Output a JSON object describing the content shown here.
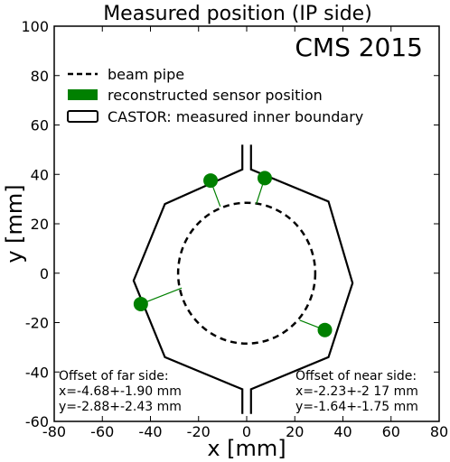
{
  "chart_data": {
    "type": "scatter",
    "title": "Measured position (IP side)",
    "xlabel": "x [mm]",
    "ylabel": "y [mm]",
    "xlim": [
      -80,
      80
    ],
    "ylim": [
      -60,
      100
    ],
    "xticks": [
      "-80",
      "-60",
      "-40",
      "-20",
      "0",
      "20",
      "40",
      "60",
      "80"
    ],
    "yticks": [
      "-60",
      "-40",
      "-20",
      "0",
      "20",
      "40",
      "60",
      "80",
      "100"
    ],
    "grid": false,
    "legend_position": "top-left",
    "corner_label": "CMS 2015",
    "beam_pipe": {
      "name": "beam pipe",
      "center": [
        0,
        0
      ],
      "radius": 28.5,
      "style": "dashed",
      "color": "#000000"
    },
    "castor_boundary": {
      "name": "CASTOR: measured inner boundary",
      "color": "#000000",
      "far_side": [
        [
          -1.8,
          52
        ],
        [
          -1.8,
          42
        ],
        [
          -34,
          28
        ],
        [
          -47,
          -3
        ],
        [
          -34,
          -34
        ],
        [
          -1.8,
          -47
        ],
        [
          -1.8,
          -57
        ]
      ],
      "near_side": [
        [
          1.8,
          52
        ],
        [
          1.8,
          42
        ],
        [
          34,
          29
        ],
        [
          44,
          -4
        ],
        [
          34,
          -34
        ],
        [
          1.8,
          -47
        ],
        [
          1.8,
          -57
        ]
      ]
    },
    "sensors": {
      "name": "reconstructed sensor position",
      "color": "#008000",
      "points": [
        {
          "x": -15,
          "y": 37.5,
          "ref": [
            -11,
            27
          ]
        },
        {
          "x": 7.5,
          "y": 38.5,
          "ref": [
            4,
            28
          ]
        },
        {
          "x": -44,
          "y": -12.5,
          "ref": [
            -27,
            -6
          ]
        },
        {
          "x": 32.5,
          "y": -23,
          "ref": [
            22,
            -19
          ]
        }
      ]
    },
    "annotations": {
      "far": [
        "Offset of far side:",
        "x=-4.68+-1.90 mm",
        "y=-2.88+-2.43 mm"
      ],
      "near": [
        "Offset of near side:",
        "x=-2.23+-2 17 mm",
        "y=-1.64+-1.75 mm"
      ]
    }
  }
}
